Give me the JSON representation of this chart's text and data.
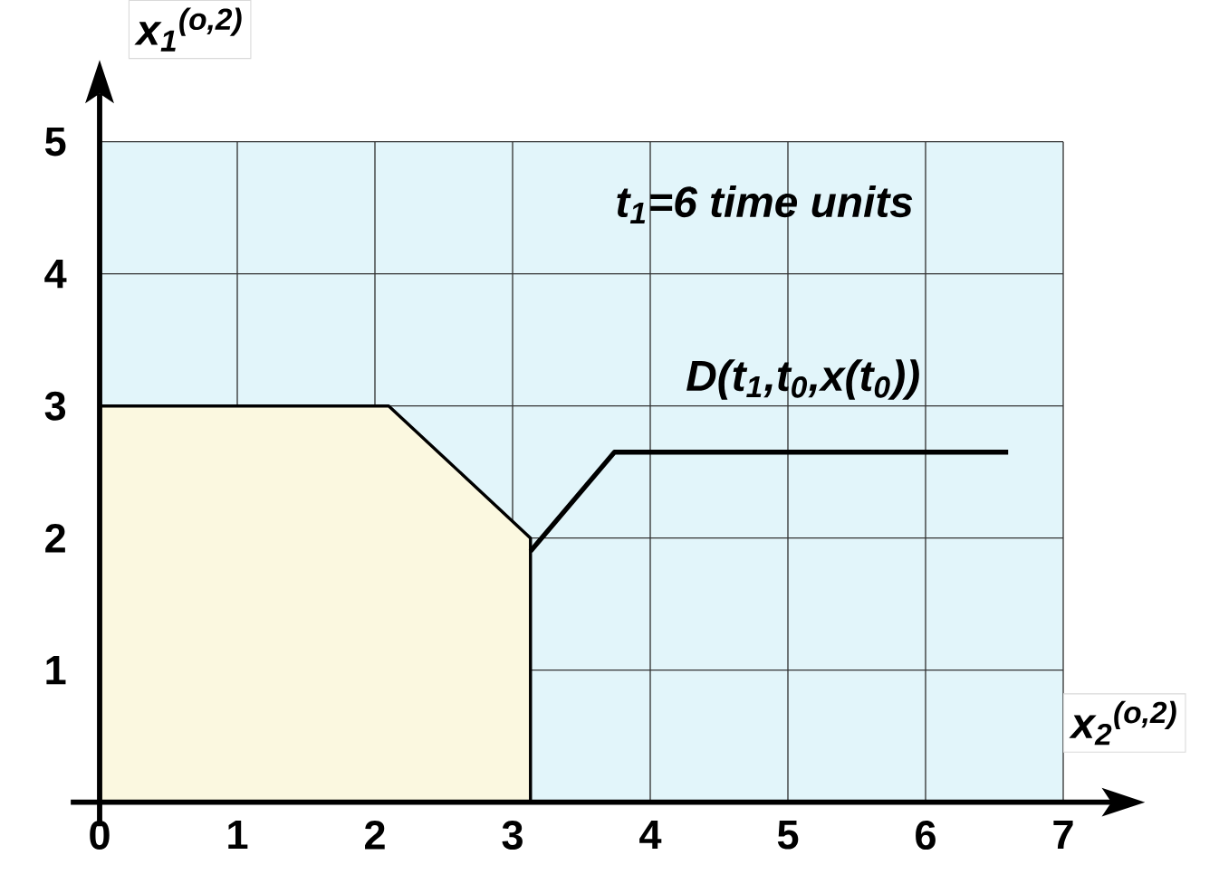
{
  "chart_data": {
    "type": "line",
    "xlabel": "x$_{2}$$^{(o,2)}$",
    "ylabel": "x$_{1}$$^{(o,2)}$",
    "xlim": [
      0,
      7
    ],
    "ylim": [
      0,
      5
    ],
    "xticks": [
      0,
      1,
      2,
      3,
      4,
      5,
      6,
      7
    ],
    "yticks": [
      {
        "value": 0,
        "label": null
      },
      1,
      2,
      3,
      4,
      5
    ],
    "grid": true,
    "marker": "none",
    "line_style": "solid",
    "series": [
      {
        "type": "area",
        "color": "#fbf8e0",
        "x": [
          0,
          2.1,
          3.13,
          3.13
        ],
        "values": [
          3,
          3,
          2.0,
          0
        ]
      },
      {
        "color": "#000000",
        "x": [
          3.13,
          3.74,
          6.6
        ],
        "values": [
          1.9,
          2.65,
          2.65
        ]
      }
    ],
    "annotations": [
      "t$_{1}$=6 time units",
      "D(t$_{1}$,t$_{0}$,x(t$_{0}$))"
    ]
  }
}
